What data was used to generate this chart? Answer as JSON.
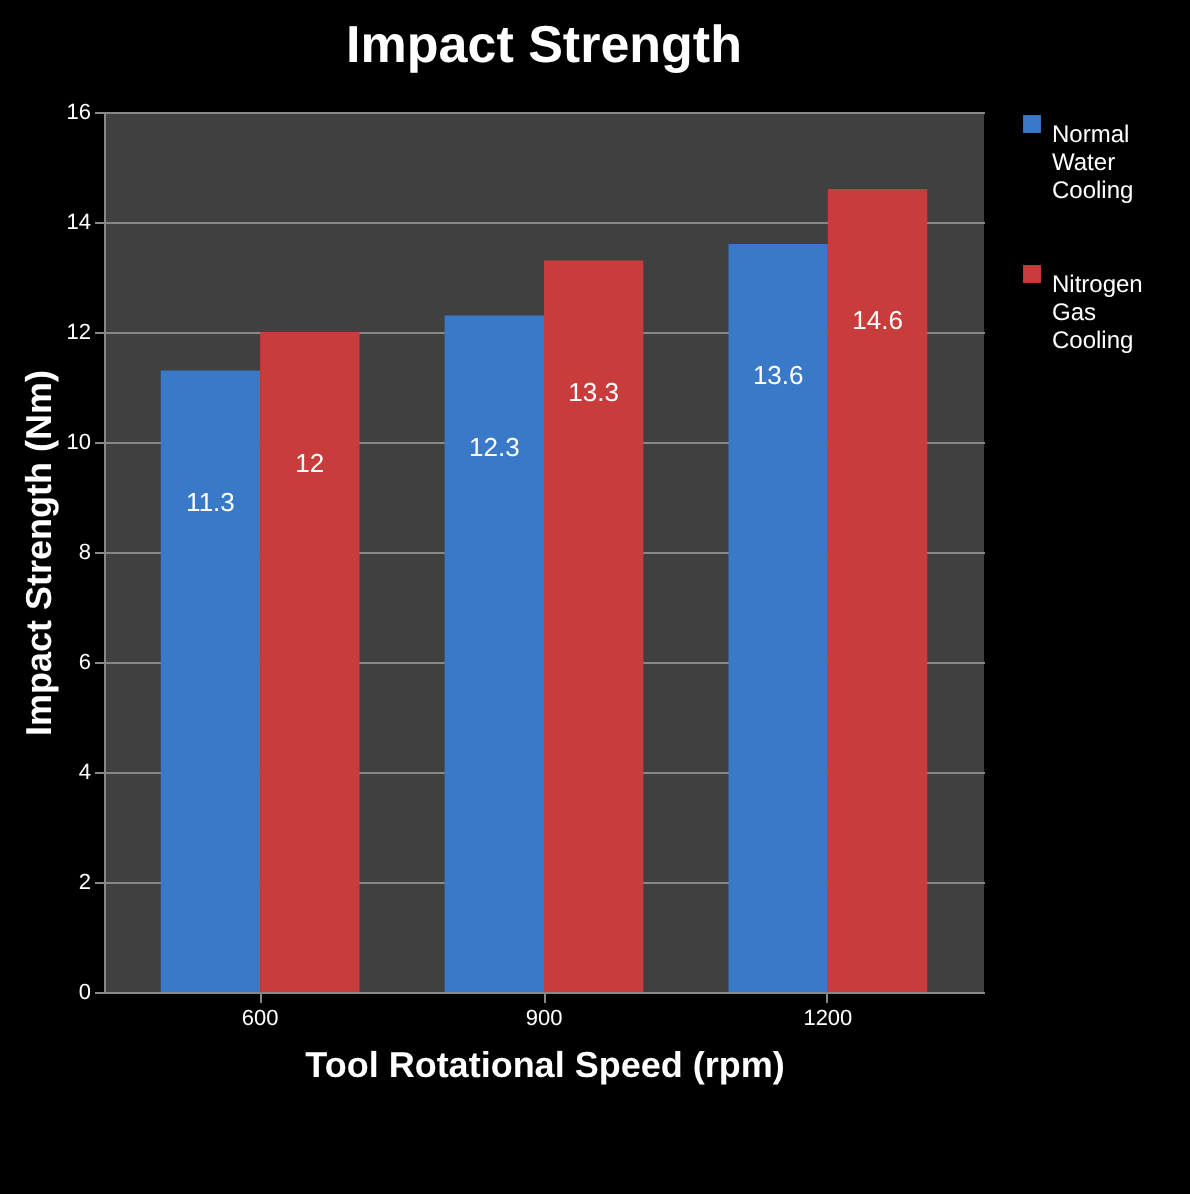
{
  "chart_data": {
    "type": "bar",
    "title": "Impact Strength",
    "xlabel": "Tool Rotational Speed (rpm)",
    "ylabel": "Impact Strength (Nm)",
    "categories": [
      "600",
      "900",
      "1200"
    ],
    "series": [
      {
        "name": "Normal Water Cooling",
        "color": "#3a78c8",
        "values": [
          11.3,
          12.3,
          13.6
        ]
      },
      {
        "name": "Nitrogen Gas Cooling",
        "color": "#c83c3c",
        "values": [
          12,
          13.3,
          14.6
        ]
      }
    ],
    "ylim": [
      0,
      16
    ],
    "yticks": [
      0,
      2,
      4,
      6,
      8,
      10,
      12,
      14,
      16
    ],
    "grid": "y",
    "legend": "right",
    "data_labels": true
  }
}
